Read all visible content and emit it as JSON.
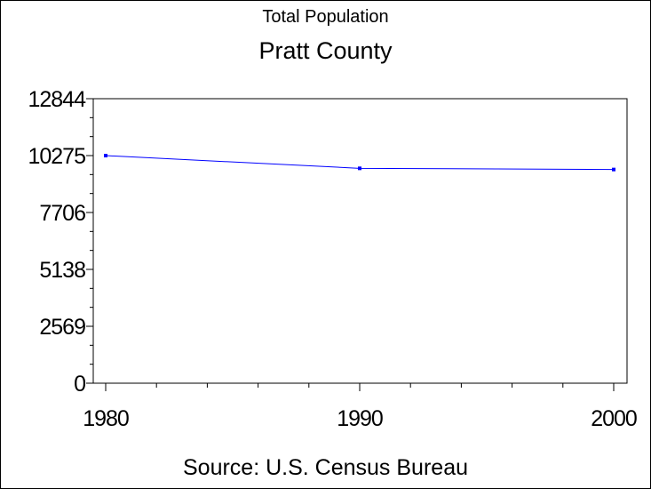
{
  "chart_data": {
    "type": "line",
    "title": "Pratt County",
    "subtitle": "Total Population",
    "source": "Source: U.S. Census Bureau",
    "x": [
      1980,
      1990,
      2000
    ],
    "series": [
      {
        "values": [
          10275,
          9700,
          9647
        ],
        "color": "#0000ff"
      }
    ],
    "xlim": [
      1980,
      2000
    ],
    "xticks": [
      "1980",
      "1990",
      "2000"
    ],
    "ylim": [
      0,
      12844
    ],
    "yticks": [
      "0",
      "2569",
      "5138",
      "7706",
      "10275",
      "12844"
    ],
    "grid": false
  }
}
